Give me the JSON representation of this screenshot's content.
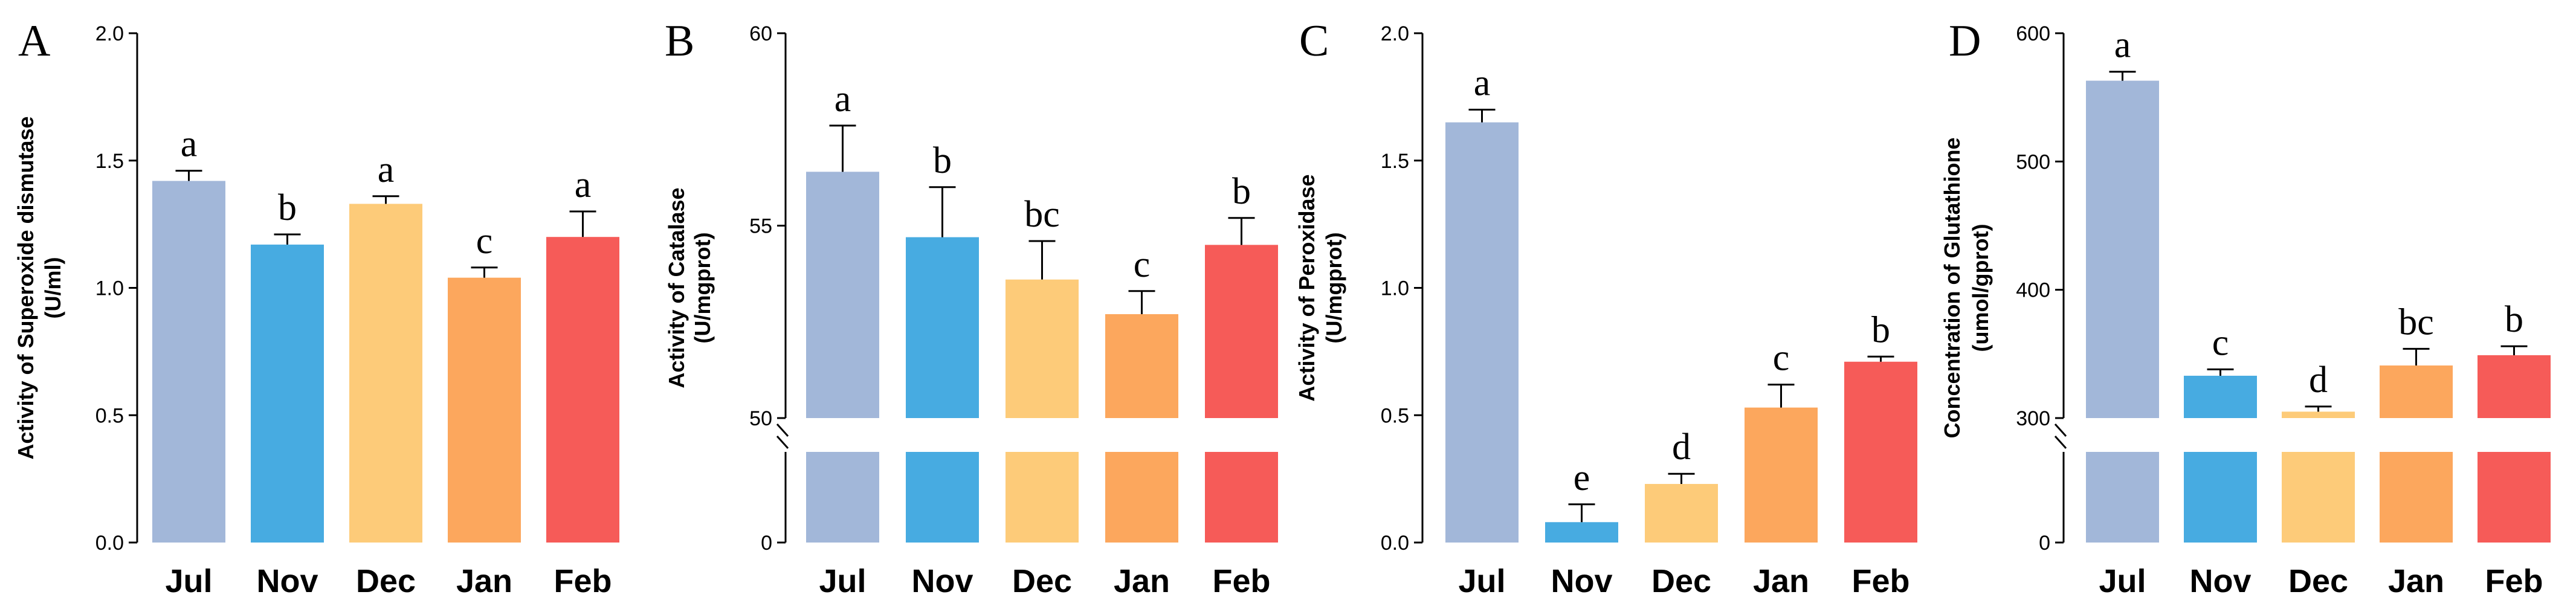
{
  "colors": {
    "Jul": "#a2b7d9",
    "Nov": "#47abe1",
    "Dec": "#fdcb79",
    "Jan": "#fca75d",
    "Feb": "#f65b58"
  },
  "chart_data": [
    {
      "type": "bar",
      "panel": "A",
      "ylabel_lines": [
        "Activity of Superoxide dismutase",
        "(U/ml)"
      ],
      "categories": [
        "Jul",
        "Nov",
        "Dec",
        "Jan",
        "Feb"
      ],
      "values": [
        1.42,
        1.17,
        1.33,
        1.04,
        1.2
      ],
      "errors": [
        0.04,
        0.04,
        0.03,
        0.04,
        0.1
      ],
      "letters": [
        "a",
        "b",
        "a",
        "c",
        "a"
      ],
      "yticks": [
        0.0,
        0.5,
        1.0,
        1.5,
        2.0
      ],
      "ytick_labels": [
        "0.0",
        "0.5",
        "1.0",
        "1.5",
        "2.0"
      ],
      "ylim": [
        0,
        2.0
      ],
      "axis_break": null
    },
    {
      "type": "bar",
      "panel": "B",
      "ylabel_lines": [
        "Activity of Catalase",
        "(U/mgprot)"
      ],
      "categories": [
        "Jul",
        "Nov",
        "Dec",
        "Jan",
        "Feb"
      ],
      "values": [
        56.4,
        54.7,
        53.6,
        52.7,
        54.5
      ],
      "errors": [
        1.2,
        1.3,
        1.0,
        0.6,
        0.7
      ],
      "letters": [
        "a",
        "b",
        "bc",
        "c",
        "b"
      ],
      "yticks": [
        0,
        50,
        55,
        60
      ],
      "ytick_labels": [
        "0",
        "50",
        "55",
        "60"
      ],
      "ylim": [
        0,
        60
      ],
      "axis_break": {
        "lower": [
          0,
          50
        ],
        "upper": [
          50,
          60
        ]
      }
    },
    {
      "type": "bar",
      "panel": "C",
      "ylabel_lines": [
        "Activity of Peroxidase",
        "(U/mgprot)"
      ],
      "categories": [
        "Jul",
        "Nov",
        "Dec",
        "Jan",
        "Feb"
      ],
      "values": [
        1.65,
        0.08,
        0.23,
        0.53,
        0.71
      ],
      "errors": [
        0.05,
        0.07,
        0.04,
        0.09,
        0.02
      ],
      "letters": [
        "a",
        "e",
        "d",
        "c",
        "b"
      ],
      "yticks": [
        0.0,
        0.5,
        1.0,
        1.5,
        2.0
      ],
      "ytick_labels": [
        "0.0",
        "0.5",
        "1.0",
        "1.5",
        "2.0"
      ],
      "ylim": [
        0,
        2.0
      ],
      "axis_break": null
    },
    {
      "type": "bar",
      "panel": "D",
      "ylabel_lines": [
        "Concentration of Glutathione",
        "(umol/gprot)"
      ],
      "categories": [
        "Jul",
        "Nov",
        "Dec",
        "Jan",
        "Feb"
      ],
      "values": [
        563,
        333,
        305,
        341,
        349
      ],
      "errors": [
        7,
        5,
        4,
        13,
        7
      ],
      "letters": [
        "a",
        "c",
        "d",
        "bc",
        "b"
      ],
      "yticks": [
        0,
        300,
        400,
        500,
        600
      ],
      "ytick_labels": [
        "0",
        "300",
        "400",
        "500",
        "600"
      ],
      "ylim": [
        0,
        600
      ],
      "axis_break": {
        "lower": [
          0,
          300
        ],
        "upper": [
          300,
          600
        ]
      }
    }
  ]
}
